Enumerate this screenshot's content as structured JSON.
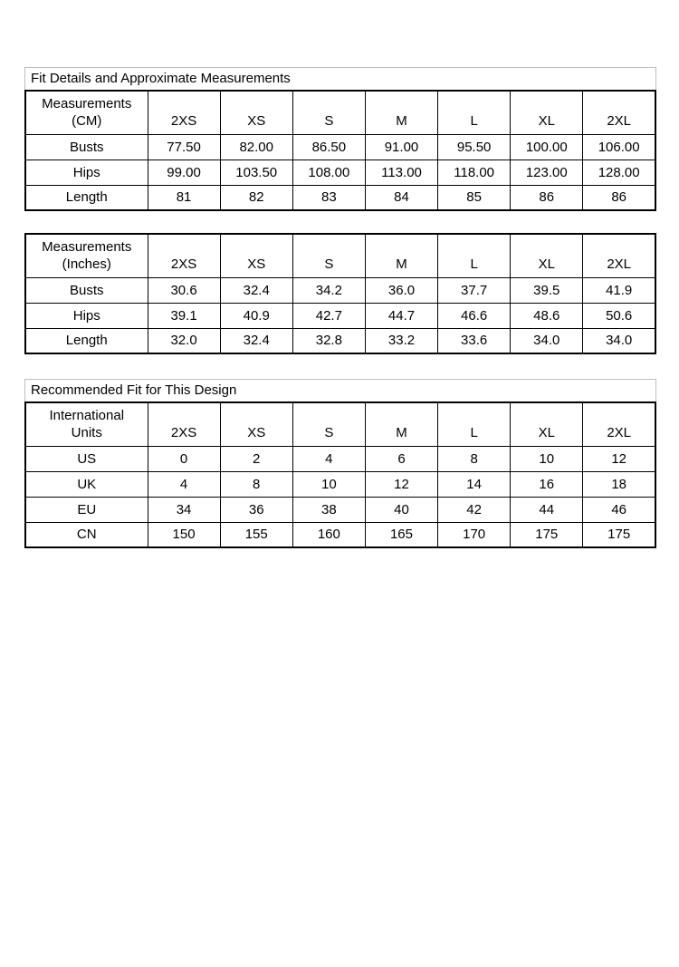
{
  "titles": {
    "fit_details": "Fit Details and Approximate Measurements",
    "recommended_fit": "Recommended Fit for This Design"
  },
  "colors": {
    "table_border": "#000000",
    "title_border": "#bdbdbd",
    "text": "#000000",
    "background": "#ffffff"
  },
  "tables": {
    "cm": {
      "header": {
        "line1": "Measurements",
        "line2": "(CM)"
      },
      "sizes": [
        "2XS",
        "XS",
        "S",
        "M",
        "L",
        "XL",
        "2XL"
      ],
      "rows": [
        {
          "label": "Busts",
          "values": [
            "77.50",
            "82.00",
            "86.50",
            "91.00",
            "95.50",
            "100.00",
            "106.00"
          ]
        },
        {
          "label": "Hips",
          "values": [
            "99.00",
            "103.50",
            "108.00",
            "113.00",
            "118.00",
            "123.00",
            "128.00"
          ]
        },
        {
          "label": "Length",
          "values": [
            "81",
            "82",
            "83",
            "84",
            "85",
            "86",
            "86"
          ]
        }
      ]
    },
    "inches": {
      "header": {
        "line1": "Measurements",
        "line2": "(Inches)"
      },
      "sizes": [
        "2XS",
        "XS",
        "S",
        "M",
        "L",
        "XL",
        "2XL"
      ],
      "rows": [
        {
          "label": "Busts",
          "values": [
            "30.6",
            "32.4",
            "34.2",
            "36.0",
            "37.7",
            "39.5",
            "41.9"
          ]
        },
        {
          "label": "Hips",
          "values": [
            "39.1",
            "40.9",
            "42.7",
            "44.7",
            "46.6",
            "48.6",
            "50.6"
          ]
        },
        {
          "label": "Length",
          "values": [
            "32.0",
            "32.4",
            "32.8",
            "33.2",
            "33.6",
            "34.0",
            "34.0"
          ]
        }
      ]
    },
    "fit": {
      "header": {
        "line1": "International",
        "line2": "Units"
      },
      "sizes": [
        "2XS",
        "XS",
        "S",
        "M",
        "L",
        "XL",
        "2XL"
      ],
      "rows": [
        {
          "label": "US",
          "values": [
            "0",
            "2",
            "4",
            "6",
            "8",
            "10",
            "12"
          ]
        },
        {
          "label": "UK",
          "values": [
            "4",
            "8",
            "10",
            "12",
            "14",
            "16",
            "18"
          ]
        },
        {
          "label": "EU",
          "values": [
            "34",
            "36",
            "38",
            "40",
            "42",
            "44",
            "46"
          ]
        },
        {
          "label": "CN",
          "values": [
            "150",
            "155",
            "160",
            "165",
            "170",
            "175",
            "175"
          ]
        }
      ]
    }
  }
}
